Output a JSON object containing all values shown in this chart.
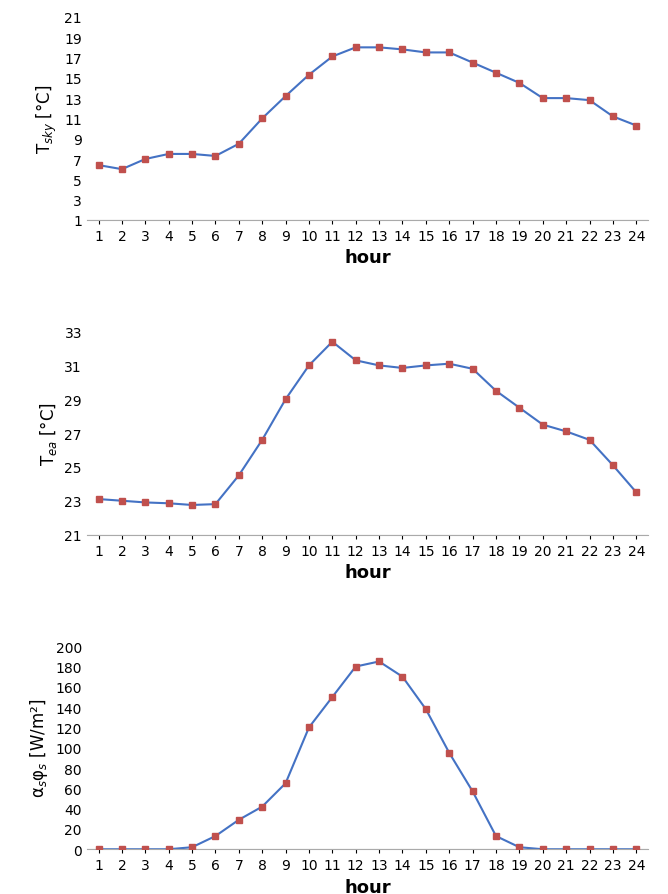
{
  "hours": [
    1,
    2,
    3,
    4,
    5,
    6,
    7,
    8,
    9,
    10,
    11,
    12,
    13,
    14,
    15,
    16,
    17,
    18,
    19,
    20,
    21,
    22,
    23,
    24
  ],
  "T_sky": [
    6.4,
    6.0,
    7.0,
    7.5,
    7.5,
    7.3,
    8.5,
    11.0,
    13.2,
    15.3,
    17.1,
    18.0,
    18.0,
    17.8,
    17.5,
    17.5,
    16.5,
    15.5,
    14.5,
    13.0,
    13.0,
    12.8,
    11.2,
    10.3
  ],
  "T_ea": [
    23.1,
    23.0,
    22.9,
    22.85,
    22.75,
    22.8,
    24.5,
    26.6,
    29.0,
    31.0,
    32.4,
    31.3,
    31.0,
    30.85,
    31.0,
    31.1,
    30.8,
    29.5,
    28.5,
    27.5,
    27.1,
    26.6,
    25.1,
    23.5
  ],
  "alpha_phi": [
    0,
    0,
    0,
    0,
    2,
    13,
    29,
    42,
    65,
    120,
    150,
    180,
    185,
    170,
    138,
    95,
    57,
    13,
    2,
    0,
    0,
    0,
    0,
    0
  ],
  "line_color": "#4472C4",
  "marker_color": "#C0504D",
  "line_width": 1.5,
  "marker_size": 4,
  "xlabel": "hour",
  "xlabel_fontsize": 13,
  "tick_fontsize": 10,
  "ylabel_sky": "T$_{sky}$ [°C]",
  "ylabel_ea": "T$_{ea}$ [°C]",
  "ylabel_alpha": "α$_s$φ$_s$ [W/m²]",
  "ylim_sky": [
    1,
    21
  ],
  "yticks_sky": [
    1,
    3,
    5,
    7,
    9,
    11,
    13,
    15,
    17,
    19,
    21
  ],
  "ylim_ea": [
    21,
    33
  ],
  "yticks_ea": [
    21,
    23,
    25,
    27,
    29,
    31,
    33
  ],
  "ylim_alpha": [
    0,
    200
  ],
  "yticks_alpha": [
    0,
    20,
    40,
    60,
    80,
    100,
    120,
    140,
    160,
    180,
    200
  ],
  "spine_color": "#AAAAAA",
  "background_color": "#FFFFFF"
}
